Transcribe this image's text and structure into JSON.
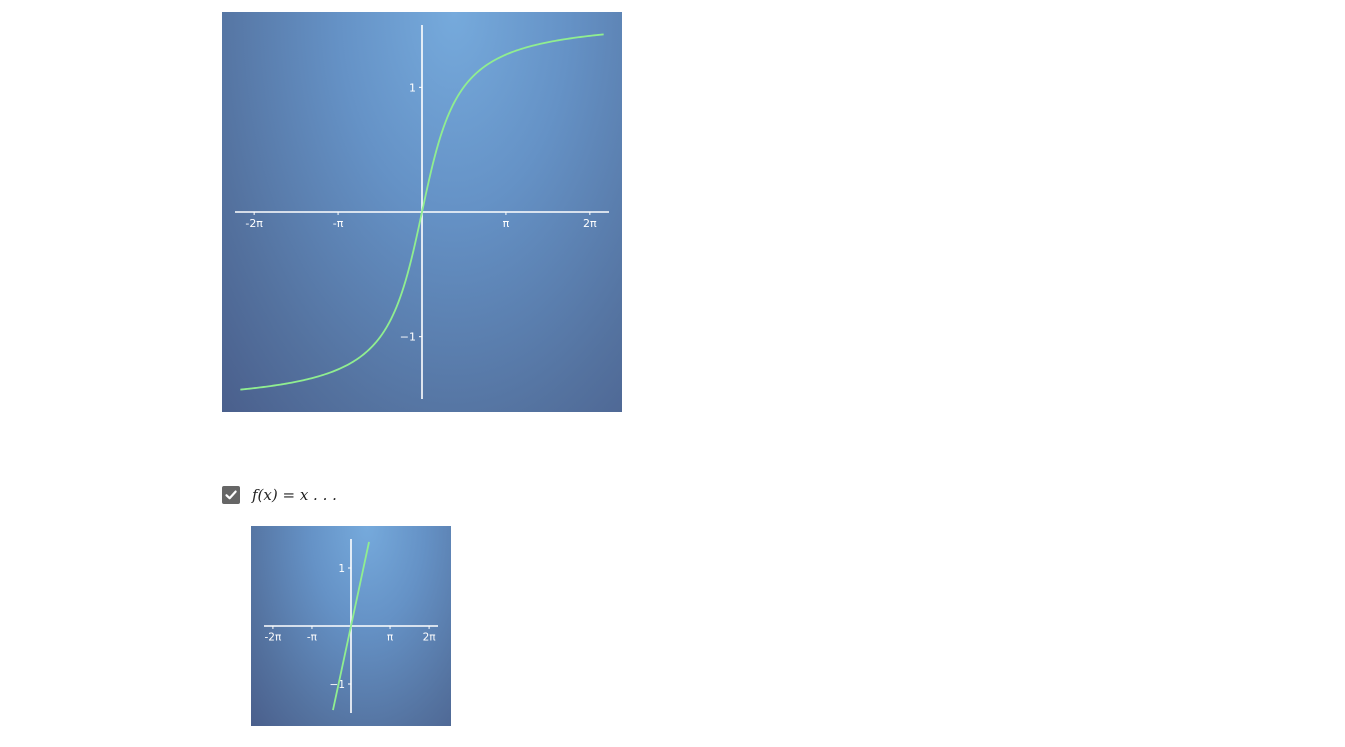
{
  "chart_data": [
    {
      "type": "line",
      "function": "arctan",
      "xlim": [
        -7.0,
        7.0
      ],
      "ylim": [
        -1.5,
        1.5
      ],
      "x_ticks": [
        {
          "value": -6.2832,
          "label": "-2π"
        },
        {
          "value": -3.1416,
          "label": "-π"
        },
        {
          "value": 3.1416,
          "label": "π"
        },
        {
          "value": 6.2832,
          "label": "2π"
        }
      ],
      "y_ticks": [
        {
          "value": 1,
          "label": "1"
        },
        {
          "value": -1,
          "label": "−1"
        }
      ],
      "series": [
        {
          "color": "#90ee90",
          "x": [
            -6.8,
            -6,
            -5,
            -4,
            -3,
            -2,
            -1.5,
            -1,
            -0.5,
            0,
            0.5,
            1,
            1.5,
            2,
            3,
            4,
            5,
            6,
            6.8
          ],
          "y": [
            -1.424,
            -1.406,
            -1.373,
            -1.326,
            -1.249,
            -1.107,
            -0.983,
            -0.785,
            -0.464,
            0,
            0.464,
            0.785,
            0.983,
            1.107,
            1.249,
            1.326,
            1.373,
            1.406,
            1.424
          ]
        }
      ]
    },
    {
      "type": "line",
      "function": "identity",
      "xlim": [
        -7.0,
        7.0
      ],
      "ylim": [
        -1.5,
        1.5
      ],
      "x_ticks": [
        {
          "value": -6.2832,
          "label": "-2π"
        },
        {
          "value": -3.1416,
          "label": "-π"
        },
        {
          "value": 3.1416,
          "label": "π"
        },
        {
          "value": 6.2832,
          "label": "2π"
        }
      ],
      "y_ticks": [
        {
          "value": 1,
          "label": "1"
        },
        {
          "value": -1,
          "label": "−1"
        }
      ],
      "series": [
        {
          "color": "#90ee90",
          "x": [
            -1.45,
            1.45
          ],
          "y": [
            -1.45,
            1.45
          ]
        }
      ]
    }
  ],
  "controls": {
    "checkbox_checked": true,
    "formula_label": "f(x) = x . . ."
  },
  "colors": {
    "axis": "#ffffff",
    "tick_label": "#ffffff",
    "curve": "#90ee90",
    "checkbox": "#666666"
  }
}
